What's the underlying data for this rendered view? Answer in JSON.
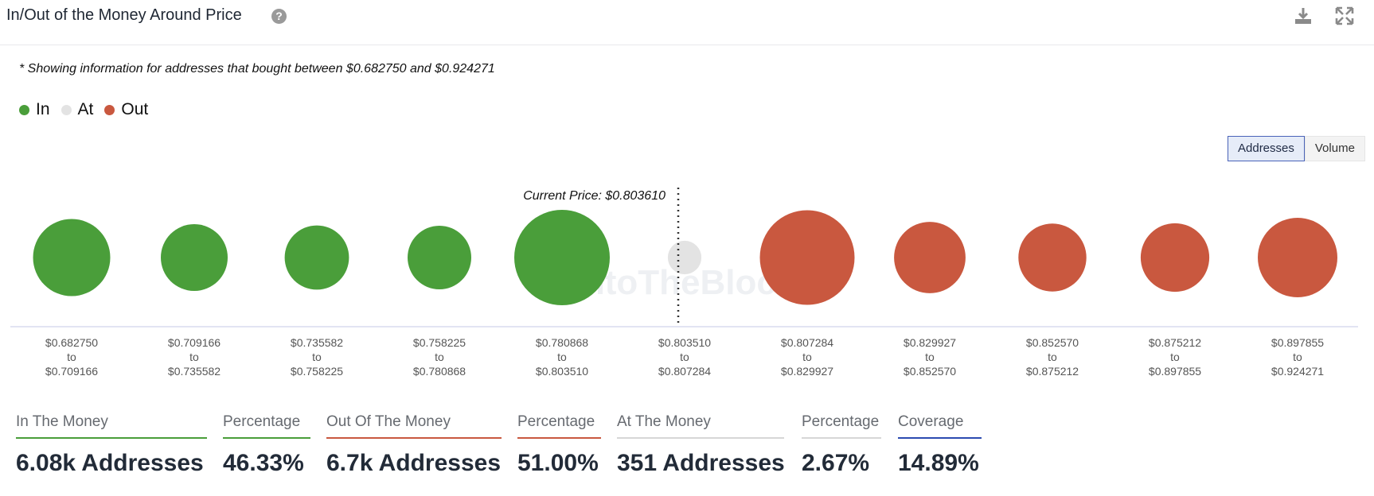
{
  "header": {
    "title": "In/Out of the Money Around Price",
    "help_icon": "question-circle-icon",
    "download_icon": "download-icon",
    "expand_icon": "expand-icon"
  },
  "note": "* Showing information for addresses that bought between $0.682750 and $0.924271",
  "legend": [
    {
      "label": "In",
      "color": "#4a9e3a"
    },
    {
      "label": "At",
      "color": "#e3e3e3"
    },
    {
      "label": "Out",
      "color": "#c9583f"
    }
  ],
  "toggle": {
    "options": [
      "Addresses",
      "Volume"
    ],
    "selected": "Addresses"
  },
  "chart_data": {
    "type": "scatter",
    "current_price_label": "Current Price: $0.803610",
    "current_price": 0.80361,
    "watermark": "IntoTheBlock",
    "categories": [
      {
        "from": "$0.682750",
        "to": "$0.709166",
        "status": "in",
        "size": 0.57
      },
      {
        "from": "$0.709166",
        "to": "$0.735582",
        "status": "in",
        "size": 0.38
      },
      {
        "from": "$0.735582",
        "to": "$0.758225",
        "status": "in",
        "size": 0.34
      },
      {
        "from": "$0.758225",
        "to": "$0.780868",
        "status": "in",
        "size": 0.33
      },
      {
        "from": "$0.780868",
        "to": "$0.803510",
        "status": "in",
        "size": 1.0
      },
      {
        "from": "$0.803510",
        "to": "$0.807284",
        "status": "at",
        "size": 0.03
      },
      {
        "from": "$0.807284",
        "to": "$0.829927",
        "status": "out",
        "size": 0.98
      },
      {
        "from": "$0.829927",
        "to": "$0.852570",
        "status": "out",
        "size": 0.46
      },
      {
        "from": "$0.852570",
        "to": "$0.875212",
        "status": "out",
        "size": 0.4
      },
      {
        "from": "$0.875212",
        "to": "$0.897855",
        "status": "out",
        "size": 0.41
      },
      {
        "from": "$0.897855",
        "to": "$0.924271",
        "status": "out",
        "size": 0.62
      }
    ],
    "range_word": "to",
    "colors": {
      "in": "#4a9e3a",
      "at": "#e3e3e3",
      "out": "#c9583f"
    }
  },
  "stats": [
    {
      "label": "In The Money",
      "value": "6.08k Addresses",
      "color": "#4a9e3a"
    },
    {
      "label": "Percentage",
      "value": "46.33%",
      "color": "#4a9e3a"
    },
    {
      "label": "Out Of The Money",
      "value": "6.7k Addresses",
      "color": "#c9583f"
    },
    {
      "label": "Percentage",
      "value": "51.00%",
      "color": "#c9583f"
    },
    {
      "label": "At The Money",
      "value": "351 Addresses",
      "color": "#d6d6d6"
    },
    {
      "label": "Percentage",
      "value": "2.67%",
      "color": "#d6d6d6"
    },
    {
      "label": "Coverage",
      "value": "14.89%",
      "color": "#2b4bb0"
    }
  ]
}
